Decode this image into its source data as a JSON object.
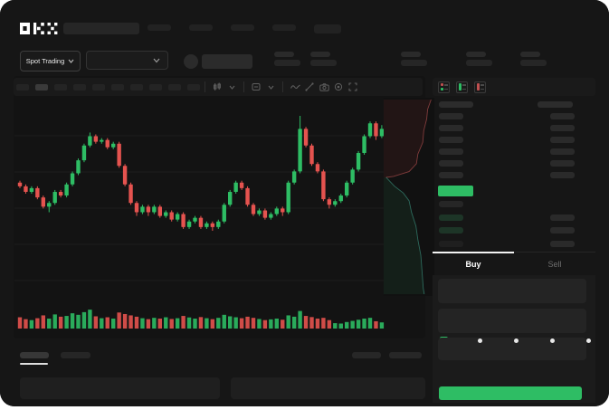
{
  "brand": {
    "logo_text": "OKX"
  },
  "topnav": {
    "nav_item_count": 5,
    "nav_item_widths": [
      26,
      26,
      26,
      26,
      30
    ]
  },
  "market_bar": {
    "market_selector_label": "Spot Trading",
    "stat_group_x": [
      303,
      343,
      443,
      515,
      575
    ]
  },
  "chart_toolbar": {
    "interval_pill_count": 10,
    "active_pill_index": 1,
    "icons": [
      "candle-type-icon",
      "chevron-down-icon",
      "interval-box-icon",
      "chevron-down-icon",
      "indicator-wave-icon",
      "draw-line-icon",
      "camera-icon",
      "settings-gear-icon",
      "fullscreen-icon"
    ]
  },
  "orderbook": {
    "view_icons": [
      "book-combined-icon",
      "book-bids-icon",
      "book-asks-icon"
    ],
    "ask_row_count": 6,
    "bid_rows": [
      {
        "left_tint": "none",
        "has_right": false
      },
      {
        "left_tint": "green",
        "has_right": true
      },
      {
        "left_tint": "green",
        "has_right": true
      },
      {
        "left_tint": "dark",
        "has_right": true
      }
    ],
    "last_price_color": "#2ebd64"
  },
  "trade_panel": {
    "tabs": [
      {
        "label": "Buy",
        "active": true
      },
      {
        "label": "Sell",
        "active": false
      }
    ],
    "field_count": 3,
    "slider": {
      "stop_count": 5,
      "selected_index": 0,
      "accent": "#2ebd64"
    },
    "submit_color": "#2ebd64"
  },
  "bottom_bar": {
    "tab_count": 2,
    "active_tab_index": 0,
    "right_item_count": 2,
    "panel_count": 2
  },
  "chart_data": {
    "type": "candlestick",
    "title": "",
    "xlabel": "",
    "ylabel": "",
    "axis_labels_visible": false,
    "grid": true,
    "ylim": [
      30,
      100
    ],
    "up_color": "#2ebd64",
    "down_color": "#e5534f",
    "candles_ohlc": [
      [
        62,
        63,
        59,
        60
      ],
      [
        60,
        61,
        56,
        57
      ],
      [
        57,
        60,
        56,
        59
      ],
      [
        59,
        60,
        53,
        54
      ],
      [
        54,
        55,
        48,
        49
      ],
      [
        49,
        52,
        46,
        51
      ],
      [
        51,
        58,
        50,
        57
      ],
      [
        57,
        58,
        54,
        55
      ],
      [
        55,
        62,
        54,
        61
      ],
      [
        61,
        68,
        60,
        67
      ],
      [
        67,
        75,
        66,
        74
      ],
      [
        74,
        83,
        73,
        82
      ],
      [
        82,
        89,
        81,
        87
      ],
      [
        87,
        88,
        83,
        84
      ],
      [
        84,
        86,
        83,
        85
      ],
      [
        85,
        86,
        80,
        81
      ],
      [
        81,
        84,
        80,
        83
      ],
      [
        83,
        84,
        70,
        71
      ],
      [
        71,
        72,
        60,
        61
      ],
      [
        61,
        62,
        50,
        51
      ],
      [
        51,
        52,
        44,
        46
      ],
      [
        46,
        50,
        45,
        49
      ],
      [
        49,
        50,
        44,
        46
      ],
      [
        46,
        50,
        45,
        49
      ],
      [
        49,
        50,
        43,
        44
      ],
      [
        44,
        47,
        43,
        46
      ],
      [
        46,
        47,
        41,
        42
      ],
      [
        42,
        46,
        41,
        45
      ],
      [
        45,
        46,
        37,
        38
      ],
      [
        38,
        42,
        37,
        41
      ],
      [
        41,
        44,
        40,
        43
      ],
      [
        43,
        44,
        37,
        38
      ],
      [
        38,
        41,
        37,
        40
      ],
      [
        40,
        41,
        36,
        38
      ],
      [
        38,
        42,
        37,
        41
      ],
      [
        41,
        51,
        40,
        50
      ],
      [
        50,
        58,
        49,
        57
      ],
      [
        57,
        63,
        56,
        62
      ],
      [
        62,
        63,
        58,
        59
      ],
      [
        59,
        60,
        49,
        50
      ],
      [
        50,
        51,
        44,
        45
      ],
      [
        45,
        48,
        44,
        47
      ],
      [
        47,
        48,
        42,
        43
      ],
      [
        43,
        46,
        42,
        45
      ],
      [
        45,
        49,
        44,
        48
      ],
      [
        48,
        49,
        44,
        46
      ],
      [
        46,
        63,
        45,
        62
      ],
      [
        62,
        69,
        61,
        68
      ],
      [
        68,
        98,
        67,
        91
      ],
      [
        91,
        92,
        81,
        82
      ],
      [
        82,
        83,
        71,
        72
      ],
      [
        72,
        73,
        67,
        68
      ],
      [
        68,
        69,
        52,
        53
      ],
      [
        53,
        54,
        48,
        50
      ],
      [
        50,
        53,
        49,
        52
      ],
      [
        52,
        56,
        51,
        55
      ],
      [
        55,
        63,
        54,
        62
      ],
      [
        62,
        70,
        61,
        69
      ],
      [
        69,
        79,
        68,
        78
      ],
      [
        78,
        88,
        77,
        87
      ],
      [
        87,
        95,
        86,
        94
      ],
      [
        94,
        95,
        85,
        87
      ],
      [
        87,
        93,
        86,
        91
      ]
    ],
    "volume": [
      45,
      35,
      30,
      40,
      55,
      38,
      60,
      48,
      52,
      66,
      58,
      72,
      85,
      50,
      40,
      45,
      38,
      70,
      62,
      55,
      48,
      40,
      35,
      42,
      38,
      45,
      36,
      40,
      52,
      44,
      38,
      46,
      40,
      35,
      42,
      58,
      50,
      45,
      40,
      48,
      42,
      36,
      30,
      34,
      38,
      32,
      55,
      48,
      78,
      52,
      46,
      38,
      42,
      30,
      14,
      12,
      20,
      26,
      32,
      38,
      42,
      24,
      18
    ],
    "depth": {
      "ask_line_color": "rgba(214,92,92,0.55)",
      "bid_line_color": "rgba(64,160,140,0.60)",
      "ask_fill": "rgba(190,60,60,0.10)",
      "bid_fill": "rgba(46,160,100,0.10)",
      "ask_curve": [
        [
          0.97,
          0.0
        ],
        [
          0.9,
          0.05
        ],
        [
          0.88,
          0.1
        ],
        [
          0.82,
          0.16
        ],
        [
          0.8,
          0.22
        ],
        [
          0.7,
          0.28
        ],
        [
          0.67,
          0.33
        ],
        [
          0.52,
          0.37
        ],
        [
          0.2,
          0.395
        ],
        [
          0.05,
          0.4
        ]
      ],
      "bid_curve": [
        [
          0.05,
          0.4
        ],
        [
          0.22,
          0.445
        ],
        [
          0.4,
          0.48
        ],
        [
          0.52,
          0.52
        ],
        [
          0.57,
          0.58
        ],
        [
          0.66,
          0.65
        ],
        [
          0.7,
          0.72
        ],
        [
          0.76,
          0.8
        ],
        [
          0.79,
          0.9
        ],
        [
          0.81,
          0.97
        ],
        [
          0.83,
          1.0
        ]
      ]
    }
  }
}
